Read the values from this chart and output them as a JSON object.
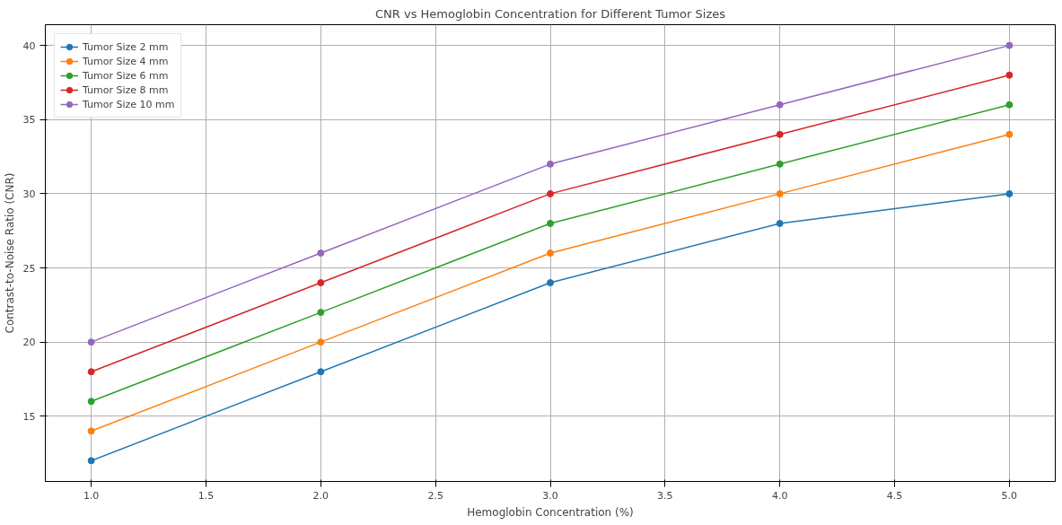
{
  "chart_data": {
    "type": "line",
    "title": "CNR vs Hemoglobin Concentration for Different Tumor Sizes",
    "xlabel": "Hemoglobin Concentration (%)",
    "ylabel": "Contrast-to-Noise Ratio (CNR)",
    "x": [
      1.0,
      2.0,
      3.0,
      4.0,
      5.0
    ],
    "series": [
      {
        "name": "Tumor Size 2 mm",
        "color": "#1f77b4",
        "values": [
          12,
          18,
          24,
          28,
          30
        ]
      },
      {
        "name": "Tumor Size 4 mm",
        "color": "#ff7f0e",
        "values": [
          14,
          20,
          26,
          30,
          34
        ]
      },
      {
        "name": "Tumor Size 6 mm",
        "color": "#2ca02c",
        "values": [
          16,
          22,
          28,
          32,
          36
        ]
      },
      {
        "name": "Tumor Size 8 mm",
        "color": "#d62728",
        "values": [
          18,
          24,
          30,
          34,
          38
        ]
      },
      {
        "name": "Tumor Size 10 mm",
        "color": "#9467bd",
        "values": [
          20,
          26,
          32,
          36,
          40
        ]
      }
    ],
    "xlim": [
      0.8,
      5.2
    ],
    "ylim": [
      10.6,
      41.4
    ],
    "xticks": [
      {
        "value": 1.0,
        "label": "1.0"
      },
      {
        "value": 1.5,
        "label": "1.5"
      },
      {
        "value": 2.0,
        "label": "2.0"
      },
      {
        "value": 2.5,
        "label": "2.5"
      },
      {
        "value": 3.0,
        "label": "3.0"
      },
      {
        "value": 3.5,
        "label": "3.5"
      },
      {
        "value": 4.0,
        "label": "4.0"
      },
      {
        "value": 4.5,
        "label": "4.5"
      },
      {
        "value": 5.0,
        "label": "5.0"
      }
    ],
    "yticks": [
      15,
      20,
      25,
      30,
      35,
      40
    ],
    "grid": true,
    "legend": "top left",
    "marker": "circle",
    "line_style": "solid"
  }
}
